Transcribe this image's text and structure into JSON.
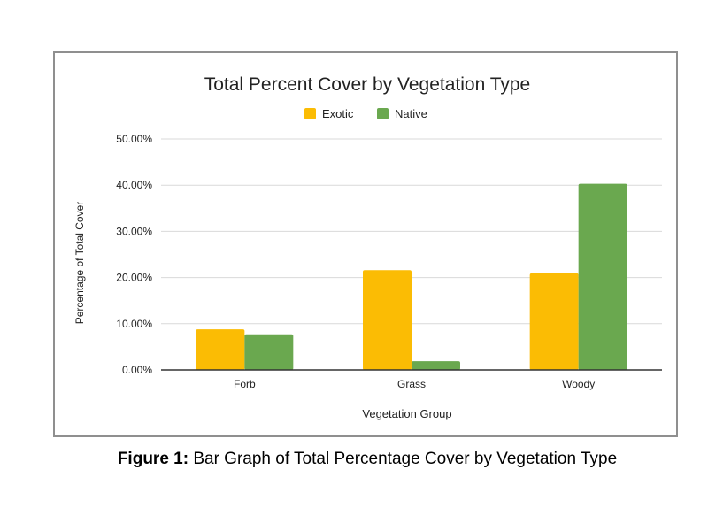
{
  "chart_data": {
    "type": "bar",
    "title": "Total Percent Cover by Vegetation Type",
    "xlabel": "Vegetation Group",
    "ylabel": "Percentage of Total Cover",
    "categories": [
      "Forb",
      "Grass",
      "Woody"
    ],
    "series": [
      {
        "name": "Exotic",
        "values": [
          8.8,
          21.6,
          20.9
        ],
        "color": "#FBBC04"
      },
      {
        "name": "Native",
        "values": [
          7.7,
          1.9,
          40.3
        ],
        "color": "#6AA84F"
      }
    ],
    "ylim": [
      0,
      50
    ],
    "yticks": [
      "0.00%",
      "10.00%",
      "20.00%",
      "30.00%",
      "40.00%",
      "50.00%"
    ],
    "grid": true,
    "legend_position": "top-center"
  },
  "caption": {
    "label": "Figure 1:",
    "text": " Bar Graph of Total Percentage Cover by Vegetation Type"
  }
}
